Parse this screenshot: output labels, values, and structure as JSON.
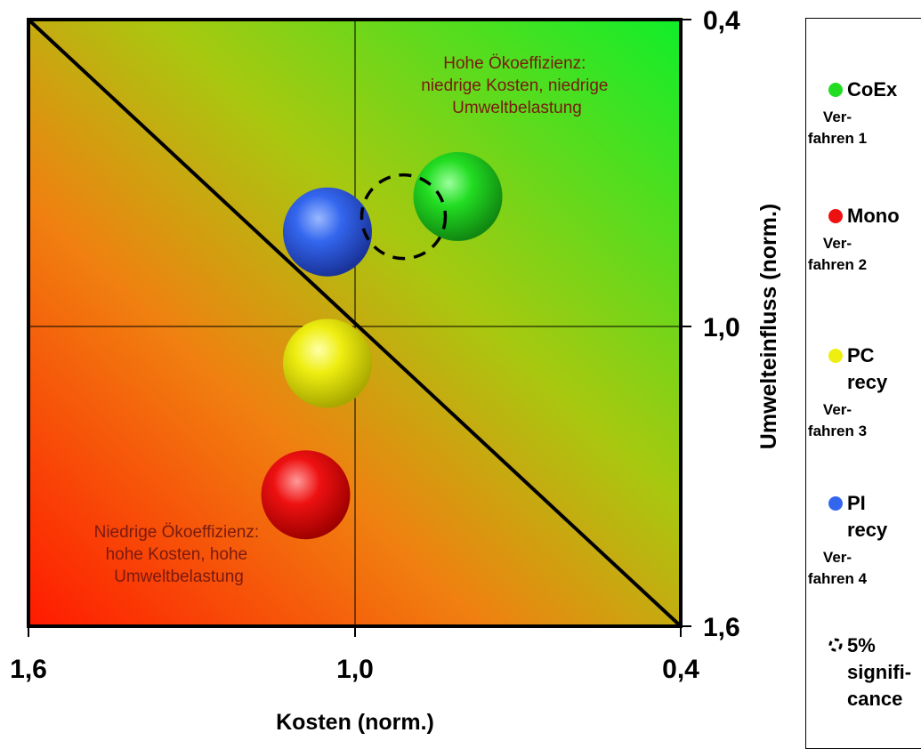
{
  "chart_data": {
    "type": "scatter",
    "title": "",
    "xlabel": "Kosten (norm.)",
    "ylabel": "Umwelteinfluss (norm.)",
    "xlim": [
      1.6,
      0.4
    ],
    "ylim": [
      1.6,
      0.4
    ],
    "x_ticks": [
      "1,6",
      "1,0",
      "0,4"
    ],
    "y_ticks": [
      "0,4",
      "1,0",
      "1,6"
    ],
    "grid": true,
    "legend_position": "right",
    "background": "gradient red (bottom-left) to green (top-right)",
    "diagonal_line": true,
    "series": [
      {
        "name": "CoEx",
        "sub": "Ver-fahren 1",
        "color": "#22cc22",
        "x": 0.81,
        "y": 0.75
      },
      {
        "name": "Mono",
        "sub": "Ver-fahren 2",
        "color": "#ee1111",
        "x": 1.09,
        "y": 1.34
      },
      {
        "name": "PC recy",
        "sub": "Ver-fahren 3",
        "color": "#eeee11",
        "x": 1.05,
        "y": 1.08
      },
      {
        "name": "PI recy",
        "sub": "Ver-fahren 4",
        "color": "#3366ee",
        "x": 1.05,
        "y": 0.82
      }
    ],
    "significance_marker": {
      "label": "5% significance",
      "x": 0.91,
      "y": 0.79
    },
    "annotations": [
      {
        "text": [
          "Hohe Ökoeffizienz:",
          "niedrige Kosten, niedrige",
          "Umweltbelastung"
        ]
      },
      {
        "text": [
          "Niedrige Ökoeffizienz:",
          "hohe Kosten, hohe",
          "Umweltbelastung"
        ]
      }
    ]
  },
  "legend": {
    "items": [
      {
        "label": "CoEx",
        "sub": "Ver-\nfahren 1",
        "color": "#22cc22"
      },
      {
        "label": "Mono",
        "sub": "Ver-\nfahren 2",
        "color": "#ee1111"
      },
      {
        "label": "PC recy",
        "sub": "Ver-\nfahren 3",
        "color": "#eeee11"
      },
      {
        "label": "PI recy",
        "sub": "Ver-\nfahren 4",
        "color": "#3366ee"
      }
    ],
    "significance_label": "5% significance"
  }
}
